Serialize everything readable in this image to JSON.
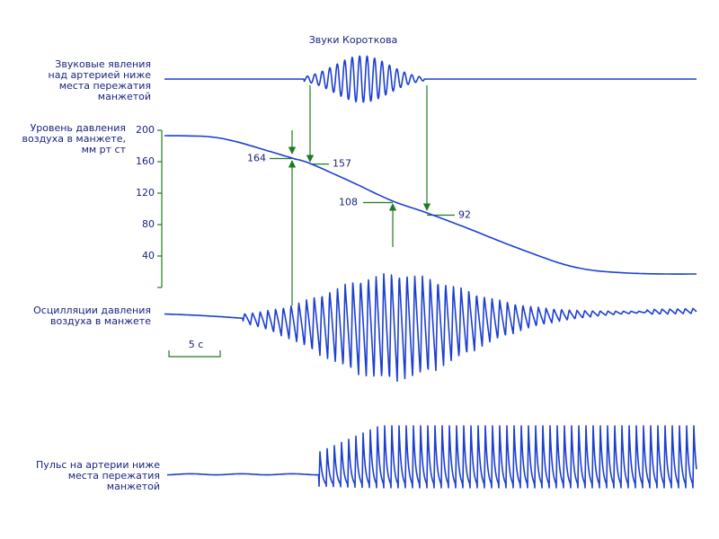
{
  "title": "Звуки Короткова",
  "traces": [
    {
      "label": [
        "Звуковые явления",
        "над артерией ниже",
        "места пережатия",
        "манжетой"
      ]
    },
    {
      "label": [
        "Уровень давления",
        "воздуха в манжете,",
        "мм рт ст"
      ]
    },
    {
      "label": [
        "Осцилляции давления",
        "воздуха в манжете"
      ]
    },
    {
      "label": [
        "Пульс на артерии ниже",
        "места пережатия",
        "манжетой"
      ]
    }
  ],
  "pressure_axis": {
    "ylim": [
      0,
      200
    ],
    "ticks": [
      200,
      160,
      120,
      80,
      40
    ]
  },
  "pressure_marks": [
    164,
    157,
    108,
    92
  ],
  "scale_bar": "5 с"
}
